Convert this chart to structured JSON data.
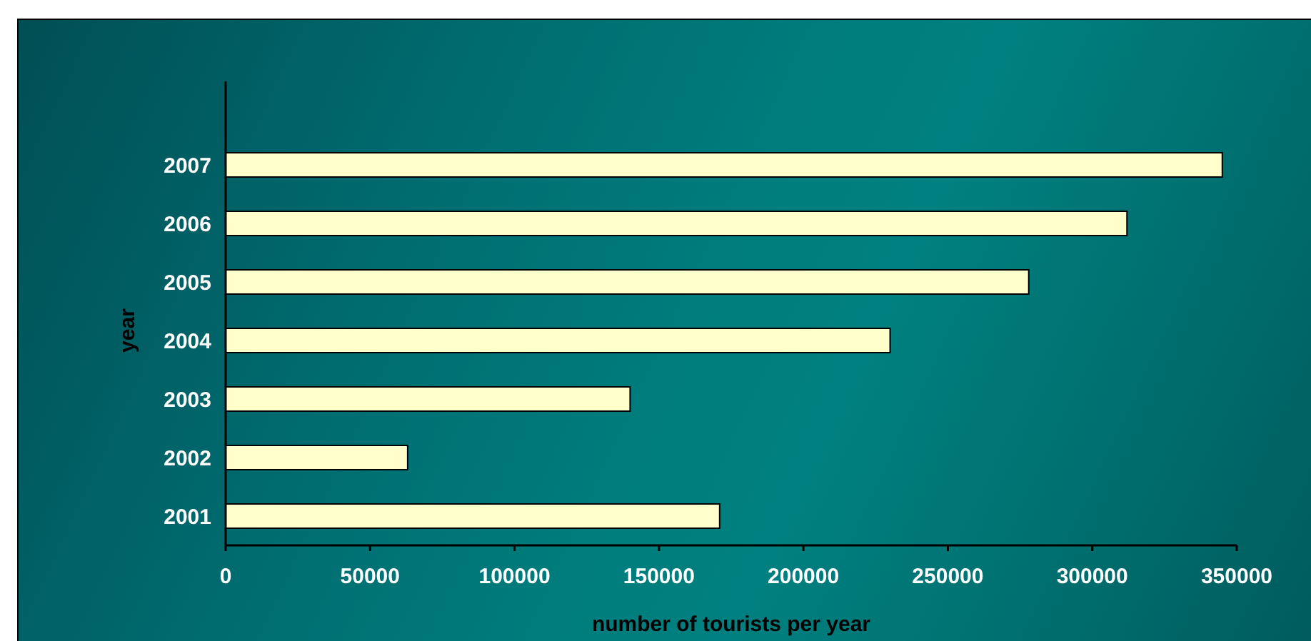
{
  "chart_data": {
    "type": "bar",
    "orientation": "horizontal",
    "xlabel": "number of tourists per year",
    "ylabel": "year",
    "categories": [
      "2007",
      "2006",
      "2005",
      "2004",
      "2003",
      "2002",
      "2001"
    ],
    "values": [
      345000,
      312000,
      278000,
      230000,
      140000,
      63000,
      171000
    ],
    "color": "#ffffcc",
    "xlim": [
      0,
      350000
    ],
    "xticks": [
      0,
      50000,
      100000,
      150000,
      200000,
      250000,
      300000,
      350000
    ]
  }
}
